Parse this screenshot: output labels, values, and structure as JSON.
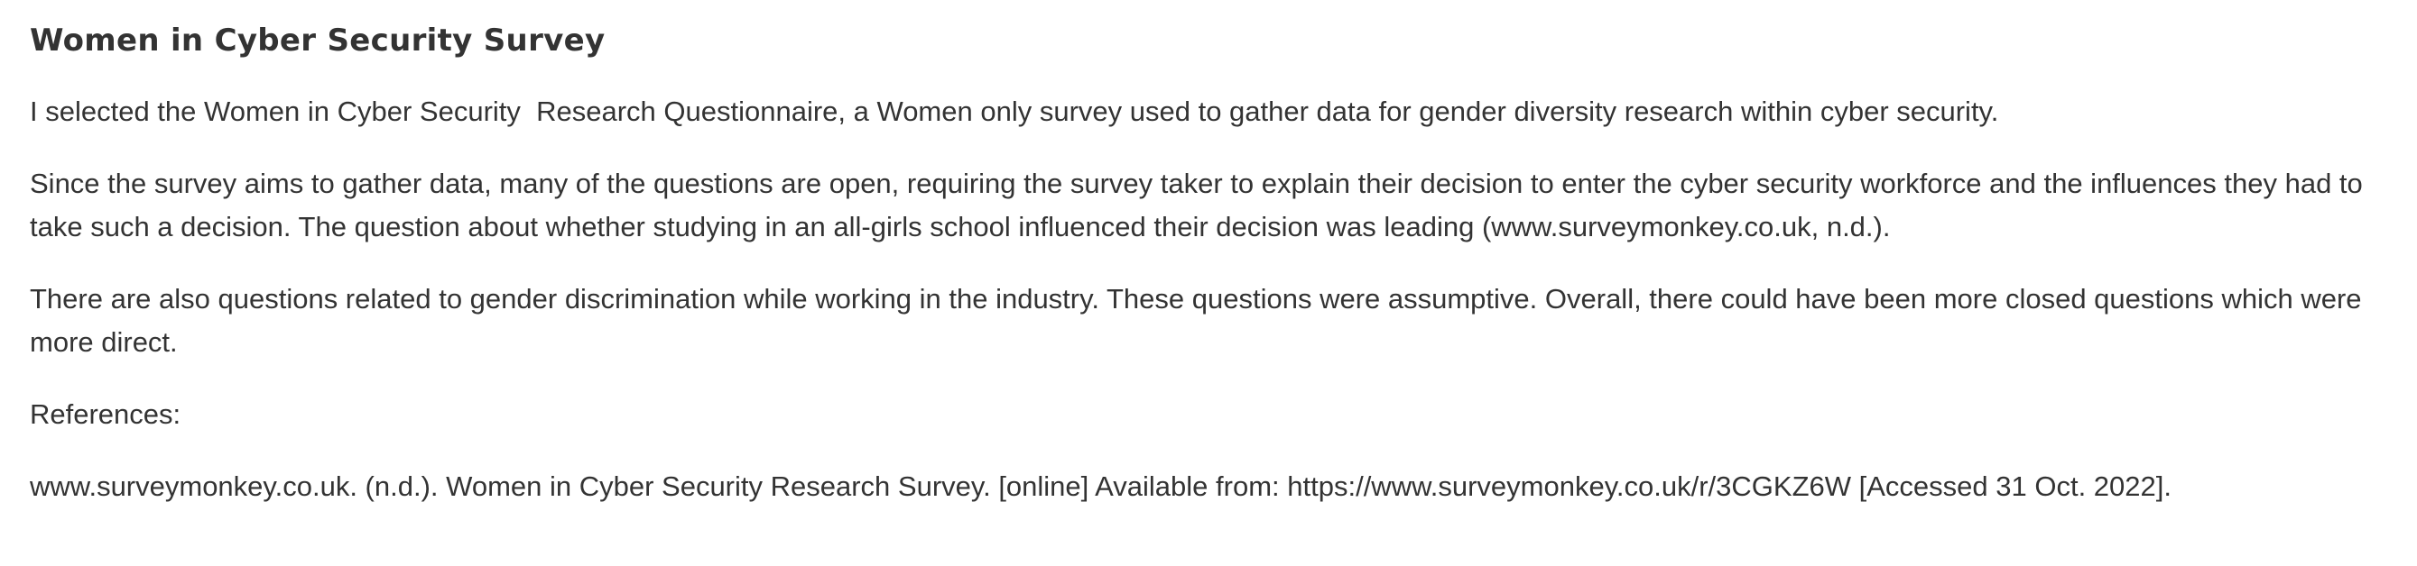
{
  "post": {
    "title": "Women in Cyber Security Survey",
    "paragraphs": [
      "I selected the Women in Cyber Security  Research Questionnaire, a Women only survey used to gather data for gender diversity research within cyber security.",
      "Since the survey aims to gather data, many of the questions are open, requiring the survey taker to explain their decision to enter the cyber security workforce and the influences they had to take such a decision. The question about whether studying in an all-girls school influenced their decision was leading (www.surveymonkey.co.uk, n.d.).",
      "There are also questions related to gender discrimination while working in the industry. These questions were assumptive. Overall, there could have been more closed questions which were more direct.",
      "References:",
      "www.surveymonkey.co.uk. (n.d.). Women in Cyber Security Research Survey. [online] Available from: https://www.surveymonkey.co.uk/r/3CGKZ6W [Accessed 31 Oct. 2022]."
    ]
  }
}
